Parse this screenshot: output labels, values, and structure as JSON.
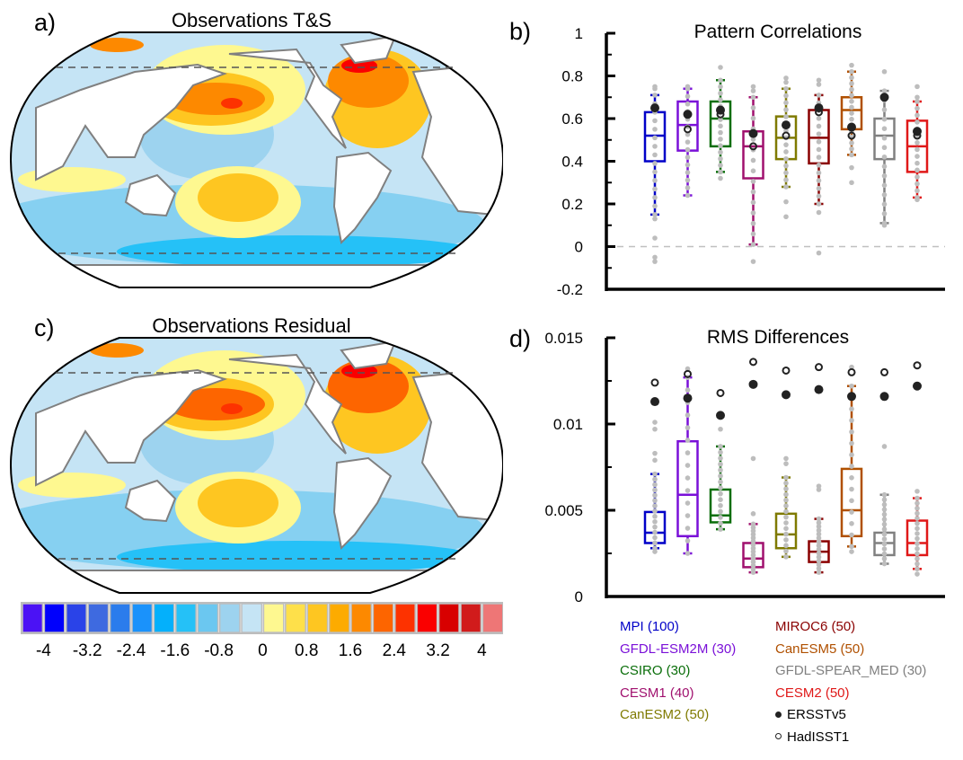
{
  "panels": {
    "a": {
      "letter": "a)",
      "title": "Observations T&S"
    },
    "b": {
      "letter": "b)"
    },
    "c": {
      "letter": "c)",
      "title": "Observations Residual"
    },
    "d": {
      "letter": "d)"
    }
  },
  "colorbar": {
    "colors": [
      "#4b12f5",
      "#0000fc",
      "#2a43e8",
      "#3e6ae0",
      "#2b7cec",
      "#1a92fb",
      "#04b0fb",
      "#25c1f7",
      "#6bc7f0",
      "#9dd3ef",
      "#c5e4f5",
      "#fef890",
      "#fee04a",
      "#fec621",
      "#fdab00",
      "#fd8900",
      "#fd6500",
      "#fd3200",
      "#fa0000",
      "#d80000",
      "#d11b1b",
      "#ee7676"
    ],
    "tick_labels": [
      "-4",
      "-3.2",
      "-2.4",
      "-1.6",
      "-0.8",
      "0",
      "0.8",
      "1.6",
      "2.4",
      "3.2",
      "4"
    ],
    "range": [
      -4.4,
      4.4
    ],
    "interval": 0.4
  },
  "legend": {
    "models": [
      {
        "label": "MPI (100)",
        "color": "#0000c8"
      },
      {
        "label": "GFDL-ESM2M (30)",
        "color": "#7a10d8"
      },
      {
        "label": "CSIRO (30)",
        "color": "#0a6e0a"
      },
      {
        "label": "CESM1 (40)",
        "color": "#a0106e"
      },
      {
        "label": "CanESM2 (50)",
        "color": "#7f7a00"
      },
      {
        "label": "MIROC6 (50)",
        "color": "#8a0000"
      },
      {
        "label": "CanESM5 (50)",
        "color": "#b05000"
      },
      {
        "label": "GFDL-SPEAR_MED (30)",
        "color": "#808080"
      },
      {
        "label": "CESM2 (50)",
        "color": "#e01818"
      }
    ],
    "obs": [
      {
        "label": "ERSSTv5",
        "marker": "filled-circle"
      },
      {
        "label": "HadISST1",
        "marker": "open-circle"
      }
    ]
  },
  "chart_data": [
    {
      "type": "box",
      "title": "Pattern Correlations",
      "xlabel": "",
      "ylabel": "",
      "ylim": [
        -0.2,
        1
      ],
      "yticks": [
        "-0.2",
        "0",
        "0.2",
        "0.4",
        "0.6",
        "0.8",
        "1"
      ],
      "reference_line": 0,
      "categories": [
        "MPI",
        "GFDL-ESM2M",
        "CSIRO",
        "CESM1",
        "CanESM2",
        "MIROC6",
        "CanESM5",
        "GFDL-SPEAR_MED",
        "CESM2"
      ],
      "series": [
        {
          "name": "MPI",
          "whisker_low": 0.15,
          "q1": 0.4,
          "median": 0.52,
          "q3": 0.63,
          "whisker_high": 0.71,
          "ERSSTv5": 0.65,
          "HadISST1": null,
          "outliers": [
            0.04,
            -0.05,
            -0.07,
            0.13,
            0.75,
            0.74
          ]
        },
        {
          "name": "GFDL-ESM2M",
          "whisker_low": 0.24,
          "q1": 0.45,
          "median": 0.57,
          "q3": 0.68,
          "whisker_high": 0.74,
          "ERSSTv5": 0.62,
          "HadISST1": 0.55,
          "outliers": [
            0.75
          ]
        },
        {
          "name": "CSIRO",
          "whisker_low": 0.35,
          "q1": 0.47,
          "median": 0.6,
          "q3": 0.68,
          "whisker_high": 0.78,
          "ERSSTv5": 0.64,
          "HadISST1": 0.62,
          "outliers": [
            0.84,
            0.32
          ]
        },
        {
          "name": "CESM1",
          "whisker_low": 0.01,
          "q1": 0.32,
          "median": 0.47,
          "q3": 0.54,
          "whisker_high": 0.7,
          "ERSSTv5": 0.53,
          "HadISST1": 0.47,
          "outliers": [
            0.75,
            0.73,
            -0.07
          ]
        },
        {
          "name": "CanESM2",
          "whisker_low": 0.28,
          "q1": 0.41,
          "median": 0.51,
          "q3": 0.61,
          "whisker_high": 0.74,
          "ERSSTv5": 0.57,
          "HadISST1": 0.52,
          "outliers": [
            0.79,
            0.77,
            0.21,
            0.14
          ]
        },
        {
          "name": "MIROC6",
          "whisker_low": 0.2,
          "q1": 0.39,
          "median": 0.51,
          "q3": 0.64,
          "whisker_high": 0.71,
          "ERSSTv5": 0.65,
          "HadISST1": 0.63,
          "outliers": [
            0.78,
            0.76,
            0.16,
            -0.03
          ]
        },
        {
          "name": "CanESM5",
          "whisker_low": 0.43,
          "q1": 0.55,
          "median": 0.64,
          "q3": 0.7,
          "whisker_high": 0.82,
          "ERSSTv5": 0.56,
          "HadISST1": 0.52,
          "outliers": [
            0.85,
            0.37,
            0.3
          ]
        },
        {
          "name": "GFDL-SPEAR_MED",
          "whisker_low": 0.11,
          "q1": 0.41,
          "median": 0.52,
          "q3": 0.6,
          "whisker_high": 0.73,
          "ERSSTv5": 0.7,
          "HadISST1": null,
          "outliers": [
            0.82,
            0.1
          ]
        },
        {
          "name": "CESM2",
          "whisker_low": 0.23,
          "q1": 0.35,
          "median": 0.47,
          "q3": 0.59,
          "whisker_high": 0.68,
          "ERSSTv5": 0.54,
          "HadISST1": 0.52,
          "outliers": [
            0.75,
            0.7,
            0.22
          ]
        }
      ]
    },
    {
      "type": "box",
      "title": "RMS Differences",
      "xlabel": "",
      "ylabel": "",
      "ylim": [
        0,
        0.015
      ],
      "yticks": [
        "0",
        "0.005",
        "0.01",
        "0.015"
      ],
      "categories": [
        "MPI",
        "GFDL-ESM2M",
        "CSIRO",
        "CESM1",
        "CanESM2",
        "MIROC6",
        "CanESM5",
        "GFDL-SPEAR_MED",
        "CESM2"
      ],
      "series": [
        {
          "name": "MPI",
          "whisker_low": 0.0028,
          "q1": 0.0031,
          "median": 0.0037,
          "q3": 0.0049,
          "whisker_high": 0.0071,
          "ERSSTv5": 0.0113,
          "HadISST1": 0.0124,
          "outliers": [
            0.0101,
            0.0097,
            0.0083,
            0.0079,
            0.0026
          ]
        },
        {
          "name": "GFDL-ESM2M",
          "whisker_low": 0.0025,
          "q1": 0.0035,
          "median": 0.0059,
          "q3": 0.009,
          "whisker_high": 0.0127,
          "ERSSTv5": 0.0115,
          "HadISST1": 0.0129,
          "outliers": [
            0.0132
          ]
        },
        {
          "name": "CSIRO",
          "whisker_low": 0.0039,
          "q1": 0.0043,
          "median": 0.0047,
          "q3": 0.0062,
          "whisker_high": 0.0087,
          "ERSSTv5": 0.0105,
          "HadISST1": 0.0118,
          "outliers": [
            0.0097
          ]
        },
        {
          "name": "CESM1",
          "whisker_low": 0.0014,
          "q1": 0.0017,
          "median": 0.0022,
          "q3": 0.0031,
          "whisker_high": 0.0042,
          "ERSSTv5": 0.0123,
          "HadISST1": 0.0136,
          "outliers": [
            0.008,
            0.0048
          ]
        },
        {
          "name": "CanESM2",
          "whisker_low": 0.0023,
          "q1": 0.0028,
          "median": 0.0036,
          "q3": 0.0048,
          "whisker_high": 0.0069,
          "ERSSTv5": 0.0117,
          "HadISST1": 0.0131,
          "outliers": [
            0.008,
            0.0077
          ]
        },
        {
          "name": "MIROC6",
          "whisker_low": 0.0014,
          "q1": 0.002,
          "median": 0.0026,
          "q3": 0.0032,
          "whisker_high": 0.0045,
          "ERSSTv5": 0.012,
          "HadISST1": 0.0133,
          "outliers": [
            0.0064,
            0.0062
          ]
        },
        {
          "name": "CanESM5",
          "whisker_low": 0.0029,
          "q1": 0.0035,
          "median": 0.005,
          "q3": 0.0074,
          "whisker_high": 0.0122,
          "ERSSTv5": 0.0116,
          "HadISST1": 0.013,
          "outliers": [
            0.0133,
            0.0026
          ]
        },
        {
          "name": "GFDL-SPEAR_MED",
          "whisker_low": 0.0019,
          "q1": 0.0024,
          "median": 0.0031,
          "q3": 0.0037,
          "whisker_high": 0.0059,
          "ERSSTv5": 0.0116,
          "HadISST1": 0.013,
          "outliers": [
            0.0087
          ]
        },
        {
          "name": "CESM2",
          "whisker_low": 0.0016,
          "q1": 0.0024,
          "median": 0.0031,
          "q3": 0.0044,
          "whisker_high": 0.0057,
          "ERSSTv5": 0.0122,
          "HadISST1": 0.0134,
          "outliers": [
            0.0061,
            0.0013
          ]
        }
      ]
    }
  ]
}
